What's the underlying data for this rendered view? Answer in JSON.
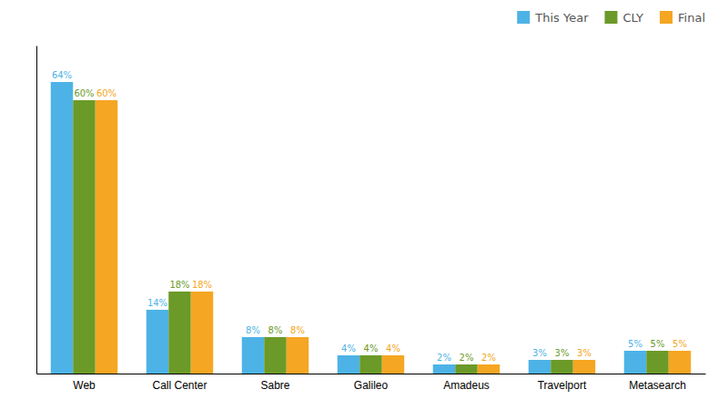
{
  "chart_data": {
    "type": "bar",
    "categories": [
      "Web",
      "Call Center",
      "Sabre",
      "Galileo",
      "Amadeus",
      "Travelport",
      "Metasearch"
    ],
    "series": [
      {
        "name": "This Year",
        "color": "#4db3e6",
        "values": [
          64,
          14,
          8,
          4,
          2,
          3,
          5
        ],
        "value_labels": [
          "64%",
          "14%",
          "8%",
          "4%",
          "2%",
          "3%",
          "5%"
        ]
      },
      {
        "name": "CLY",
        "color": "#6b9a28",
        "values": [
          60,
          18,
          8,
          4,
          2,
          3,
          5
        ],
        "value_labels": [
          "60%",
          "18%",
          "8%",
          "4%",
          "2%",
          "3%",
          "5%"
        ]
      },
      {
        "name": "Final",
        "color": "#f5a623",
        "values": [
          60,
          18,
          8,
          4,
          2,
          3,
          5
        ],
        "value_labels": [
          "60%",
          "18%",
          "8%",
          "4%",
          "2%",
          "3%",
          "5%"
        ]
      }
    ],
    "ylim": [
      0,
      72
    ],
    "grid": false,
    "legend": "upper right",
    "data_labels": true,
    "tick_labels": "x"
  }
}
